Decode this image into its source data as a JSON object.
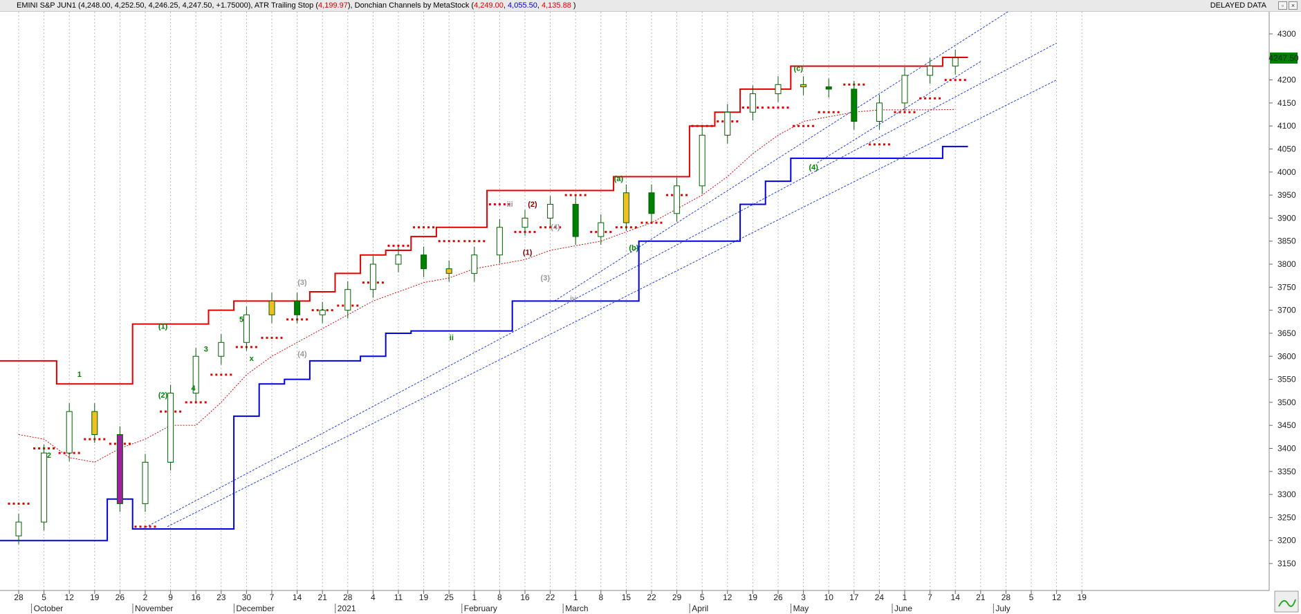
{
  "header": {
    "symbol": "EMINI S&P JUN1",
    "ohlc_open": "4,248.00",
    "ohlc_high": "4,252.50",
    "ohlc_low": "4,246.25",
    "ohlc_close": "4,247.50",
    "ohlc_change": "+1.75000",
    "atr_label": "ATR Trailing Stop",
    "atr_value": "4,199.97",
    "donchian_label": "Donchian Channels by MetaStock",
    "donchian_upper": "4,249.00",
    "donchian_lower": "4,055.50",
    "donchian_mid": "4,135.88",
    "status": "DELAYED DATA"
  },
  "colors": {
    "donchian_upper": "#e00000",
    "donchian_lower": "#0000e0",
    "atr_stop": "#e00000",
    "middle_line": "#e00000",
    "trendlines": "#2040e0",
    "up_candle": "#ffffff",
    "down_candle": "#008000",
    "highlight_yellow": "#f0c020",
    "highlight_purple": "#a020a0",
    "price_tag_bg": "#008000",
    "price_tag_text": "#ffff00"
  },
  "chart_data": {
    "type": "candlestick",
    "y_axis": {
      "ylim": [
        3100,
        4350
      ],
      "ticks": [
        3150,
        3200,
        3250,
        3300,
        3350,
        3400,
        3450,
        3500,
        3550,
        3600,
        3650,
        3700,
        3750,
        3800,
        3850,
        3900,
        3950,
        4000,
        4050,
        4100,
        4150,
        4200,
        4250,
        4300
      ]
    },
    "last_price": "4247.50",
    "x_axis": {
      "day_labels": [
        "28",
        "5",
        "12",
        "19",
        "26",
        "2",
        "9",
        "16",
        "23",
        "30",
        "7",
        "14",
        "21",
        "28",
        "4",
        "11",
        "19",
        "25",
        "1",
        "8",
        "16",
        "22",
        "1",
        "8",
        "15",
        "22",
        "29",
        "5",
        "12",
        "19",
        "26",
        "3",
        "10",
        "17",
        "24",
        "1",
        "7",
        "14",
        "21",
        "28",
        "5",
        "12",
        "19"
      ],
      "month_labels": [
        {
          "label": "October",
          "at": "5"
        },
        {
          "label": "November",
          "at": "2"
        },
        {
          "label": "December",
          "at": "30"
        },
        {
          "label": "2021",
          "at": "4"
        },
        {
          "label": "February",
          "at": "1"
        },
        {
          "label": "March",
          "at": "1"
        },
        {
          "label": "April",
          "at": "5"
        },
        {
          "label": "May",
          "at": "3"
        },
        {
          "label": "June",
          "at": "1"
        },
        {
          "label": "July",
          "at": "5"
        }
      ]
    },
    "weekly_closes": [
      3240,
      3390,
      3480,
      3430,
      3280,
      3370,
      3520,
      3600,
      3630,
      3690,
      3720,
      3690,
      3700,
      3745,
      3800,
      3820,
      3790,
      3780,
      3820,
      3880,
      3900,
      3930,
      3860,
      3890,
      3955,
      3910,
      3970,
      4080,
      4130,
      4170,
      4190,
      4185,
      4180,
      4110,
      4150,
      4210,
      4230,
      4248
    ],
    "series": [
      {
        "name": "Donchian Upper",
        "values": [
          3590,
          3590,
          3540,
          3540,
          3540,
          3670,
          3670,
          3670,
          3700,
          3720,
          3720,
          3720,
          3740,
          3780,
          3820,
          3830,
          3860,
          3880,
          3880,
          3960,
          3960,
          3960,
          3960,
          3960,
          3990,
          3990,
          3990,
          4100,
          4130,
          4180,
          4180,
          4230,
          4230,
          4230,
          4230,
          4230,
          4230,
          4249
        ]
      },
      {
        "name": "Donchian Lower",
        "values": [
          3200,
          3200,
          3200,
          3200,
          3290,
          3225,
          3225,
          3225,
          3225,
          3470,
          3540,
          3550,
          3590,
          3590,
          3600,
          3650,
          3655,
          3655,
          3655,
          3655,
          3720,
          3720,
          3720,
          3720,
          3720,
          3850,
          3850,
          3850,
          3850,
          3930,
          3980,
          4030,
          4030,
          4030,
          4030,
          4030,
          4030,
          4055.5
        ]
      },
      {
        "name": "ATR Trailing Stop",
        "values": [
          3280,
          3400,
          3390,
          3420,
          3410,
          3230,
          3480,
          3500,
          3560,
          3620,
          3640,
          3680,
          3700,
          3710,
          3760,
          3840,
          3880,
          3850,
          3850,
          3930,
          3870,
          3880,
          3950,
          3870,
          3880,
          3890,
          3950,
          4100,
          4110,
          4140,
          4140,
          4100,
          4130,
          4190,
          4060,
          4130,
          4160,
          4199.97
        ]
      },
      {
        "name": "Donchian Mid",
        "values": [
          3430,
          3420,
          3380,
          3370,
          3400,
          3420,
          3450,
          3450,
          3500,
          3560,
          3600,
          3630,
          3660,
          3690,
          3720,
          3740,
          3760,
          3770,
          3790,
          3800,
          3810,
          3830,
          3840,
          3850,
          3870,
          3890,
          3920,
          3950,
          3990,
          4040,
          4080,
          4110,
          4120,
          4130,
          4135,
          4135,
          4135,
          4135.88
        ]
      }
    ],
    "annotations": [
      "(1)",
      "(2)",
      "(3)",
      "(4)",
      "(1)",
      "(2)",
      "(3)",
      "(4)",
      "(a)",
      "(b)",
      "(c)",
      "(4)",
      "1",
      "2",
      "3",
      "4",
      "5",
      "x",
      "iii",
      "iv",
      "ii"
    ]
  }
}
